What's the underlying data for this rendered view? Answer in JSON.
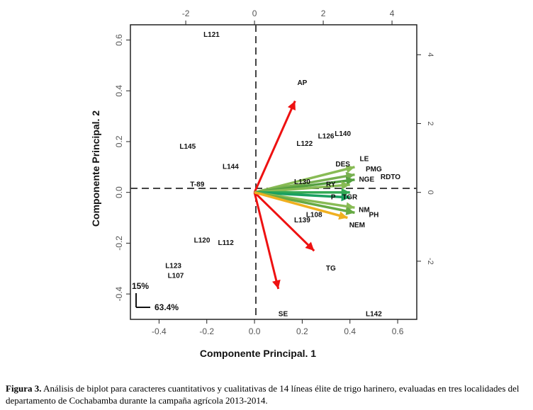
{
  "chart_data": {
    "type": "scatter",
    "subtype": "biplot",
    "xlabel": "Componente Principal. 1",
    "ylabel": "Componente Principal. 2",
    "xlim": [
      -0.52,
      0.68
    ],
    "ylim": [
      -0.5,
      0.66
    ],
    "x_ticks": [
      "-0.4",
      "-0.2",
      "0.0",
      "0.2",
      "0.4",
      "0.6"
    ],
    "y_ticks": [
      "-0.4",
      "-0.2",
      "0.0",
      "0.2",
      "0.4",
      "0.6"
    ],
    "top_axis_ticks": [
      "-2",
      "0",
      "2",
      "4"
    ],
    "right_axis_ticks": [
      "-2",
      "0",
      "2",
      "4"
    ],
    "reference_lines": "dashed at x=0 and y=0",
    "points": [
      {
        "label": "L121",
        "x": -0.18,
        "y": 0.62
      },
      {
        "label": "L145",
        "x": -0.28,
        "y": 0.18
      },
      {
        "label": "L144",
        "x": -0.1,
        "y": 0.1
      },
      {
        "label": "T-89",
        "x": -0.24,
        "y": 0.03
      },
      {
        "label": "L120",
        "x": -0.22,
        "y": -0.19
      },
      {
        "label": "L112",
        "x": -0.12,
        "y": -0.2
      },
      {
        "label": "L123",
        "x": -0.34,
        "y": -0.29
      },
      {
        "label": "L107",
        "x": -0.33,
        "y": -0.33
      },
      {
        "label": "SE",
        "x": 0.12,
        "y": -0.48
      },
      {
        "label": "TG",
        "x": 0.32,
        "y": -0.3
      },
      {
        "label": "L142",
        "x": 0.5,
        "y": -0.48
      },
      {
        "label": "L122",
        "x": 0.21,
        "y": 0.19
      },
      {
        "label": "L126",
        "x": 0.3,
        "y": 0.22
      },
      {
        "label": "L140",
        "x": 0.37,
        "y": 0.23
      },
      {
        "label": "L130",
        "x": 0.2,
        "y": 0.04
      },
      {
        "label": "L108",
        "x": 0.25,
        "y": -0.09
      },
      {
        "label": "L139",
        "x": 0.2,
        "y": -0.11
      },
      {
        "label": "AP",
        "x": 0.2,
        "y": 0.43
      }
    ],
    "variable_labels": [
      {
        "label": "DES",
        "x": 0.37,
        "y": 0.11
      },
      {
        "label": "LE",
        "x": 0.46,
        "y": 0.13
      },
      {
        "label": "PMG",
        "x": 0.5,
        "y": 0.09
      },
      {
        "label": "NGE",
        "x": 0.47,
        "y": 0.05
      },
      {
        "label": "RDTO",
        "x": 0.57,
        "y": 0.06
      },
      {
        "label": "RY",
        "x": 0.32,
        "y": 0.03
      },
      {
        "label": "P",
        "x": 0.33,
        "y": -0.02
      },
      {
        "label": "TGR",
        "x": 0.4,
        "y": -0.02
      },
      {
        "label": "NM",
        "x": 0.46,
        "y": -0.07
      },
      {
        "label": "PH",
        "x": 0.5,
        "y": -0.09
      },
      {
        "label": "NEM",
        "x": 0.43,
        "y": -0.13
      }
    ],
    "arrows": [
      {
        "color": "#ee1111",
        "x": 0.17,
        "y": 0.36
      },
      {
        "color": "#ee1111",
        "x": 0.25,
        "y": -0.23
      },
      {
        "color": "#ee1111",
        "x": 0.1,
        "y": -0.38
      },
      {
        "color": "#88bb55",
        "x": 0.42,
        "y": 0.1
      },
      {
        "color": "#77b050",
        "x": 0.42,
        "y": 0.07
      },
      {
        "color": "#55a040",
        "x": 0.42,
        "y": 0.05
      },
      {
        "color": "#88bb55",
        "x": 0.4,
        "y": 0.03
      },
      {
        "color": "#33aa55",
        "x": 0.4,
        "y": 0.0
      },
      {
        "color": "#1aa060",
        "x": 0.4,
        "y": -0.02
      },
      {
        "color": "#88bb55",
        "x": 0.42,
        "y": -0.06
      },
      {
        "color": "#66aa44",
        "x": 0.42,
        "y": -0.08
      },
      {
        "color": "#f0b020",
        "x": 0.39,
        "y": -0.1
      }
    ],
    "variance_legend": {
      "vertical": "15%",
      "horizontal": "63.4%"
    }
  },
  "caption": {
    "prefix": "Figura 3.",
    "text": " Análisis de biplot para caracteres cuantitativos y cualitativas  de 14 líneas élite de trigo harinero, evaluadas en tres localidades del departamento de Cochabamba durante la campaña agrícola 2013-2014."
  }
}
